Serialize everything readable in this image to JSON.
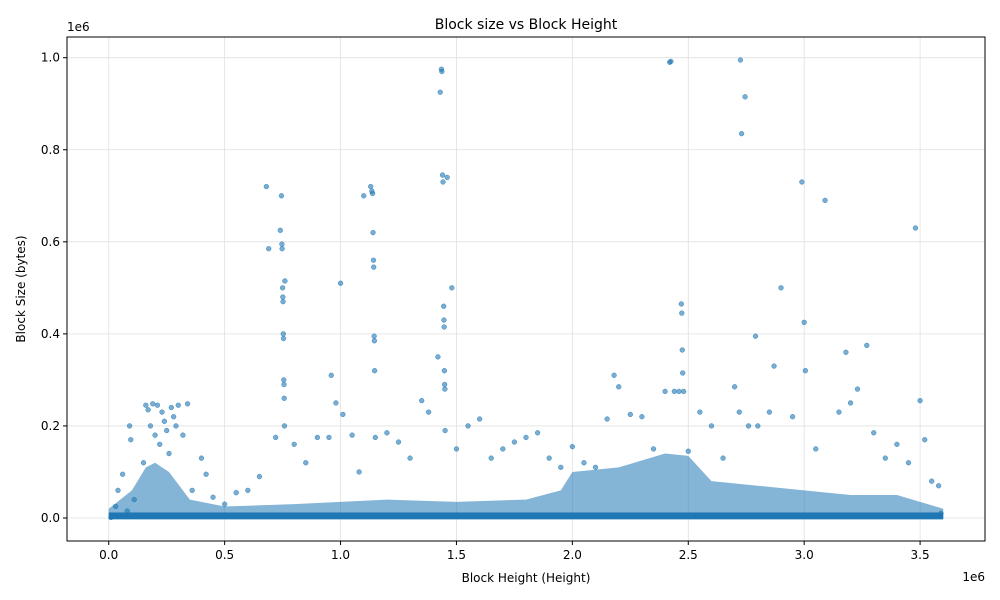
{
  "chart_data": {
    "type": "scatter",
    "title": "Block size vs Block Height",
    "xlabel": "Block Height (Height)",
    "ylabel": "Block Size (bytes)",
    "x_multiplier": "1e6",
    "y_multiplier": "1e6",
    "xlim": [
      -180000,
      3780000
    ],
    "ylim": [
      -50000,
      1045000
    ],
    "xticks": [
      0,
      500000,
      1000000,
      1500000,
      2000000,
      2500000,
      3000000,
      3500000
    ],
    "xtick_labels": [
      "0.0",
      "0.5",
      "1.0",
      "1.5",
      "2.0",
      "2.5",
      "3.0",
      "3.5"
    ],
    "yticks": [
      0,
      200000,
      400000,
      600000,
      800000,
      1000000
    ],
    "ytick_labels": [
      "0.0",
      "0.2",
      "0.4",
      "0.6",
      "0.8",
      "1.0"
    ],
    "grid": true,
    "marker_color": "#1f77b4",
    "points": [
      [
        10000,
        1200
      ],
      [
        30000,
        25000
      ],
      [
        40000,
        60000
      ],
      [
        60000,
        95000
      ],
      [
        80000,
        15000
      ],
      [
        90000,
        200000
      ],
      [
        95000,
        170000
      ],
      [
        110000,
        40000
      ],
      [
        150000,
        120000
      ],
      [
        160000,
        245000
      ],
      [
        170000,
        235000
      ],
      [
        180000,
        200000
      ],
      [
        190000,
        248000
      ],
      [
        200000,
        180000
      ],
      [
        210000,
        245000
      ],
      [
        220000,
        160000
      ],
      [
        230000,
        230000
      ],
      [
        240000,
        210000
      ],
      [
        250000,
        190000
      ],
      [
        260000,
        140000
      ],
      [
        270000,
        240000
      ],
      [
        280000,
        220000
      ],
      [
        290000,
        200000
      ],
      [
        300000,
        245000
      ],
      [
        320000,
        180000
      ],
      [
        340000,
        248000
      ],
      [
        360000,
        60000
      ],
      [
        400000,
        130000
      ],
      [
        420000,
        95000
      ],
      [
        450000,
        45000
      ],
      [
        500000,
        30000
      ],
      [
        550000,
        55000
      ],
      [
        600000,
        60000
      ],
      [
        650000,
        90000
      ],
      [
        680000,
        720000
      ],
      [
        690000,
        585000
      ],
      [
        720000,
        175000
      ],
      [
        740000,
        625000
      ],
      [
        745000,
        700000
      ],
      [
        747000,
        595000
      ],
      [
        748000,
        585000
      ],
      [
        750000,
        500000
      ],
      [
        751000,
        480000
      ],
      [
        752000,
        470000
      ],
      [
        753000,
        400000
      ],
      [
        754000,
        390000
      ],
      [
        755000,
        300000
      ],
      [
        756000,
        290000
      ],
      [
        757000,
        260000
      ],
      [
        758000,
        200000
      ],
      [
        760000,
        515000
      ],
      [
        800000,
        160000
      ],
      [
        850000,
        120000
      ],
      [
        900000,
        175000
      ],
      [
        950000,
        175000
      ],
      [
        960000,
        310000
      ],
      [
        980000,
        250000
      ],
      [
        1000000,
        510000
      ],
      [
        1010000,
        225000
      ],
      [
        1050000,
        180000
      ],
      [
        1080000,
        100000
      ],
      [
        1100000,
        700000
      ],
      [
        1130000,
        720000
      ],
      [
        1135000,
        710000
      ],
      [
        1138000,
        705000
      ],
      [
        1140000,
        620000
      ],
      [
        1142000,
        560000
      ],
      [
        1143000,
        545000
      ],
      [
        1145000,
        395000
      ],
      [
        1146000,
        385000
      ],
      [
        1147000,
        320000
      ],
      [
        1150000,
        175000
      ],
      [
        1200000,
        185000
      ],
      [
        1250000,
        165000
      ],
      [
        1300000,
        130000
      ],
      [
        1350000,
        255000
      ],
      [
        1380000,
        230000
      ],
      [
        1420000,
        350000
      ],
      [
        1430000,
        925000
      ],
      [
        1435000,
        975000
      ],
      [
        1437000,
        970000
      ],
      [
        1440000,
        745000
      ],
      [
        1442000,
        730000
      ],
      [
        1445000,
        460000
      ],
      [
        1446000,
        430000
      ],
      [
        1447000,
        415000
      ],
      [
        1448000,
        320000
      ],
      [
        1449000,
        290000
      ],
      [
        1450000,
        280000
      ],
      [
        1451000,
        190000
      ],
      [
        1460000,
        740000
      ],
      [
        1480000,
        500000
      ],
      [
        1500000,
        150000
      ],
      [
        1550000,
        200000
      ],
      [
        1600000,
        215000
      ],
      [
        1650000,
        130000
      ],
      [
        1700000,
        150000
      ],
      [
        1750000,
        165000
      ],
      [
        1800000,
        175000
      ],
      [
        1850000,
        185000
      ],
      [
        1900000,
        130000
      ],
      [
        1950000,
        110000
      ],
      [
        2000000,
        155000
      ],
      [
        2050000,
        120000
      ],
      [
        2100000,
        110000
      ],
      [
        2150000,
        215000
      ],
      [
        2180000,
        310000
      ],
      [
        2200000,
        285000
      ],
      [
        2250000,
        225000
      ],
      [
        2300000,
        220000
      ],
      [
        2350000,
        150000
      ],
      [
        2400000,
        275000
      ],
      [
        2420000,
        990000
      ],
      [
        2425000,
        992000
      ],
      [
        2440000,
        275000
      ],
      [
        2460000,
        275000
      ],
      [
        2470000,
        465000
      ],
      [
        2472000,
        445000
      ],
      [
        2474000,
        365000
      ],
      [
        2476000,
        315000
      ],
      [
        2480000,
        275000
      ],
      [
        2500000,
        145000
      ],
      [
        2550000,
        230000
      ],
      [
        2600000,
        200000
      ],
      [
        2650000,
        130000
      ],
      [
        2700000,
        285000
      ],
      [
        2720000,
        230000
      ],
      [
        2725000,
        995000
      ],
      [
        2730000,
        835000
      ],
      [
        2745000,
        915000
      ],
      [
        2760000,
        200000
      ],
      [
        2790000,
        395000
      ],
      [
        2800000,
        200000
      ],
      [
        2850000,
        230000
      ],
      [
        2870000,
        330000
      ],
      [
        2900000,
        500000
      ],
      [
        2950000,
        220000
      ],
      [
        2990000,
        730000
      ],
      [
        3000000,
        425000
      ],
      [
        3005000,
        320000
      ],
      [
        3050000,
        150000
      ],
      [
        3090000,
        690000
      ],
      [
        3150000,
        230000
      ],
      [
        3180000,
        360000
      ],
      [
        3200000,
        250000
      ],
      [
        3230000,
        280000
      ],
      [
        3270000,
        375000
      ],
      [
        3300000,
        185000
      ],
      [
        3350000,
        130000
      ],
      [
        3400000,
        160000
      ],
      [
        3450000,
        120000
      ],
      [
        3480000,
        630000
      ],
      [
        3500000,
        255000
      ],
      [
        3520000,
        170000
      ],
      [
        3550000,
        80000
      ],
      [
        3580000,
        70000
      ],
      [
        3590000,
        10000
      ]
    ]
  }
}
